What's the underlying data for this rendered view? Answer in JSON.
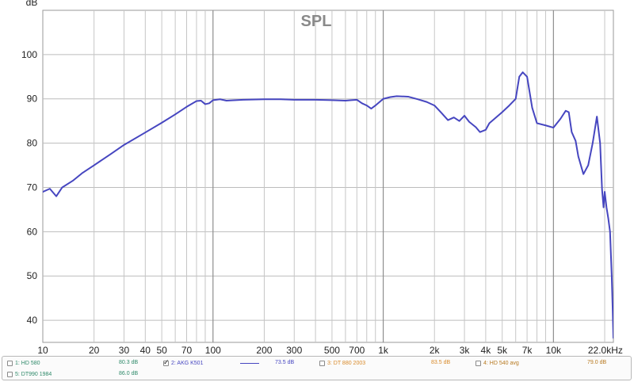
{
  "chart_data": {
    "type": "line",
    "title": "SPL",
    "ylabel": "dB",
    "xlabel": "",
    "x_scale": "log",
    "xlim": [
      10,
      22500
    ],
    "ylim": [
      35,
      110
    ],
    "grid": true,
    "y_ticks": [
      "40",
      "50",
      "60",
      "70",
      "80",
      "90",
      "100"
    ],
    "x_ticks": [
      {
        "v": 10,
        "label": "10"
      },
      {
        "v": 20,
        "label": "20"
      },
      {
        "v": 30,
        "label": "30"
      },
      {
        "v": 40,
        "label": "40"
      },
      {
        "v": 50,
        "label": "50"
      },
      {
        "v": 70,
        "label": "70"
      },
      {
        "v": 100,
        "label": "100"
      },
      {
        "v": 200,
        "label": "200"
      },
      {
        "v": 300,
        "label": "300"
      },
      {
        "v": 500,
        "label": "500"
      },
      {
        "v": 700,
        "label": "700"
      },
      {
        "v": 1000,
        "label": "1k"
      },
      {
        "v": 2000,
        "label": "2k"
      },
      {
        "v": 3000,
        "label": "3k"
      },
      {
        "v": 4000,
        "label": "4k"
      },
      {
        "v": 5000,
        "label": "5k"
      },
      {
        "v": 7000,
        "label": "7k"
      },
      {
        "v": 10000,
        "label": "10k"
      },
      {
        "v": 22000,
        "label": "22.0kHz"
      }
    ],
    "series": [
      {
        "name": "2: AKG K501",
        "color": "#4646c0",
        "points": [
          [
            10,
            69.0
          ],
          [
            11,
            69.7
          ],
          [
            12,
            68.0
          ],
          [
            13,
            70.0
          ],
          [
            15,
            71.5
          ],
          [
            17,
            73.2
          ],
          [
            20,
            75.0
          ],
          [
            25,
            77.5
          ],
          [
            30,
            79.6
          ],
          [
            40,
            82.4
          ],
          [
            50,
            84.6
          ],
          [
            60,
            86.5
          ],
          [
            70,
            88.2
          ],
          [
            80,
            89.5
          ],
          [
            85,
            89.6
          ],
          [
            90,
            88.8
          ],
          [
            95,
            89.0
          ],
          [
            100,
            89.7
          ],
          [
            110,
            89.9
          ],
          [
            120,
            89.6
          ],
          [
            150,
            89.8
          ],
          [
            200,
            89.9
          ],
          [
            250,
            89.9
          ],
          [
            300,
            89.8
          ],
          [
            400,
            89.8
          ],
          [
            500,
            89.7
          ],
          [
            600,
            89.6
          ],
          [
            650,
            89.7
          ],
          [
            700,
            89.8
          ],
          [
            750,
            89.0
          ],
          [
            800,
            88.5
          ],
          [
            850,
            87.8
          ],
          [
            900,
            88.5
          ],
          [
            1000,
            90.0
          ],
          [
            1100,
            90.4
          ],
          [
            1200,
            90.6
          ],
          [
            1400,
            90.5
          ],
          [
            1600,
            89.9
          ],
          [
            1800,
            89.3
          ],
          [
            2000,
            88.5
          ],
          [
            2200,
            86.8
          ],
          [
            2400,
            85.2
          ],
          [
            2600,
            85.8
          ],
          [
            2800,
            85.0
          ],
          [
            3000,
            86.2
          ],
          [
            3200,
            84.8
          ],
          [
            3500,
            83.6
          ],
          [
            3700,
            82.5
          ],
          [
            4000,
            83.0
          ],
          [
            4200,
            84.5
          ],
          [
            5000,
            87.0
          ],
          [
            5500,
            88.5
          ],
          [
            6000,
            90.0
          ],
          [
            6300,
            95.0
          ],
          [
            6600,
            96.0
          ],
          [
            7000,
            95.0
          ],
          [
            7500,
            88.0
          ],
          [
            8000,
            84.5
          ],
          [
            9000,
            84.0
          ],
          [
            10000,
            83.5
          ],
          [
            11000,
            85.5
          ],
          [
            11800,
            87.3
          ],
          [
            12300,
            87.0
          ],
          [
            12800,
            82.5
          ],
          [
            13500,
            80.5
          ],
          [
            14000,
            77.0
          ],
          [
            15000,
            73.0
          ],
          [
            16000,
            75.0
          ],
          [
            17000,
            80.0
          ],
          [
            18000,
            86.0
          ],
          [
            18800,
            80.0
          ],
          [
            19300,
            69.5
          ],
          [
            19700,
            65.5
          ],
          [
            20000,
            69.0
          ],
          [
            20500,
            65.5
          ],
          [
            21000,
            63.0
          ],
          [
            21500,
            60.0
          ],
          [
            22000,
            50.0
          ],
          [
            22300,
            42.0
          ],
          [
            22500,
            36.0
          ]
        ]
      }
    ],
    "legend": [
      {
        "label": "1: HD 580",
        "value": "80.3 dB",
        "color": "#2f8a6a",
        "checked": false
      },
      {
        "label": "5: DT990 1984",
        "value": "86.0 dB",
        "color": "#2f8a6a",
        "checked": false
      },
      {
        "label": "2: AKG K501",
        "value": "73.5 dB",
        "color": "#4646c0",
        "checked": true
      },
      {
        "label": "3: DT 880 2003",
        "value": "83.5 dB",
        "color": "#d98a2a",
        "checked": false
      },
      {
        "label": "4: HD 540 avg",
        "value": "79.0 dB",
        "color": "#b7791f",
        "checked": false
      }
    ]
  }
}
